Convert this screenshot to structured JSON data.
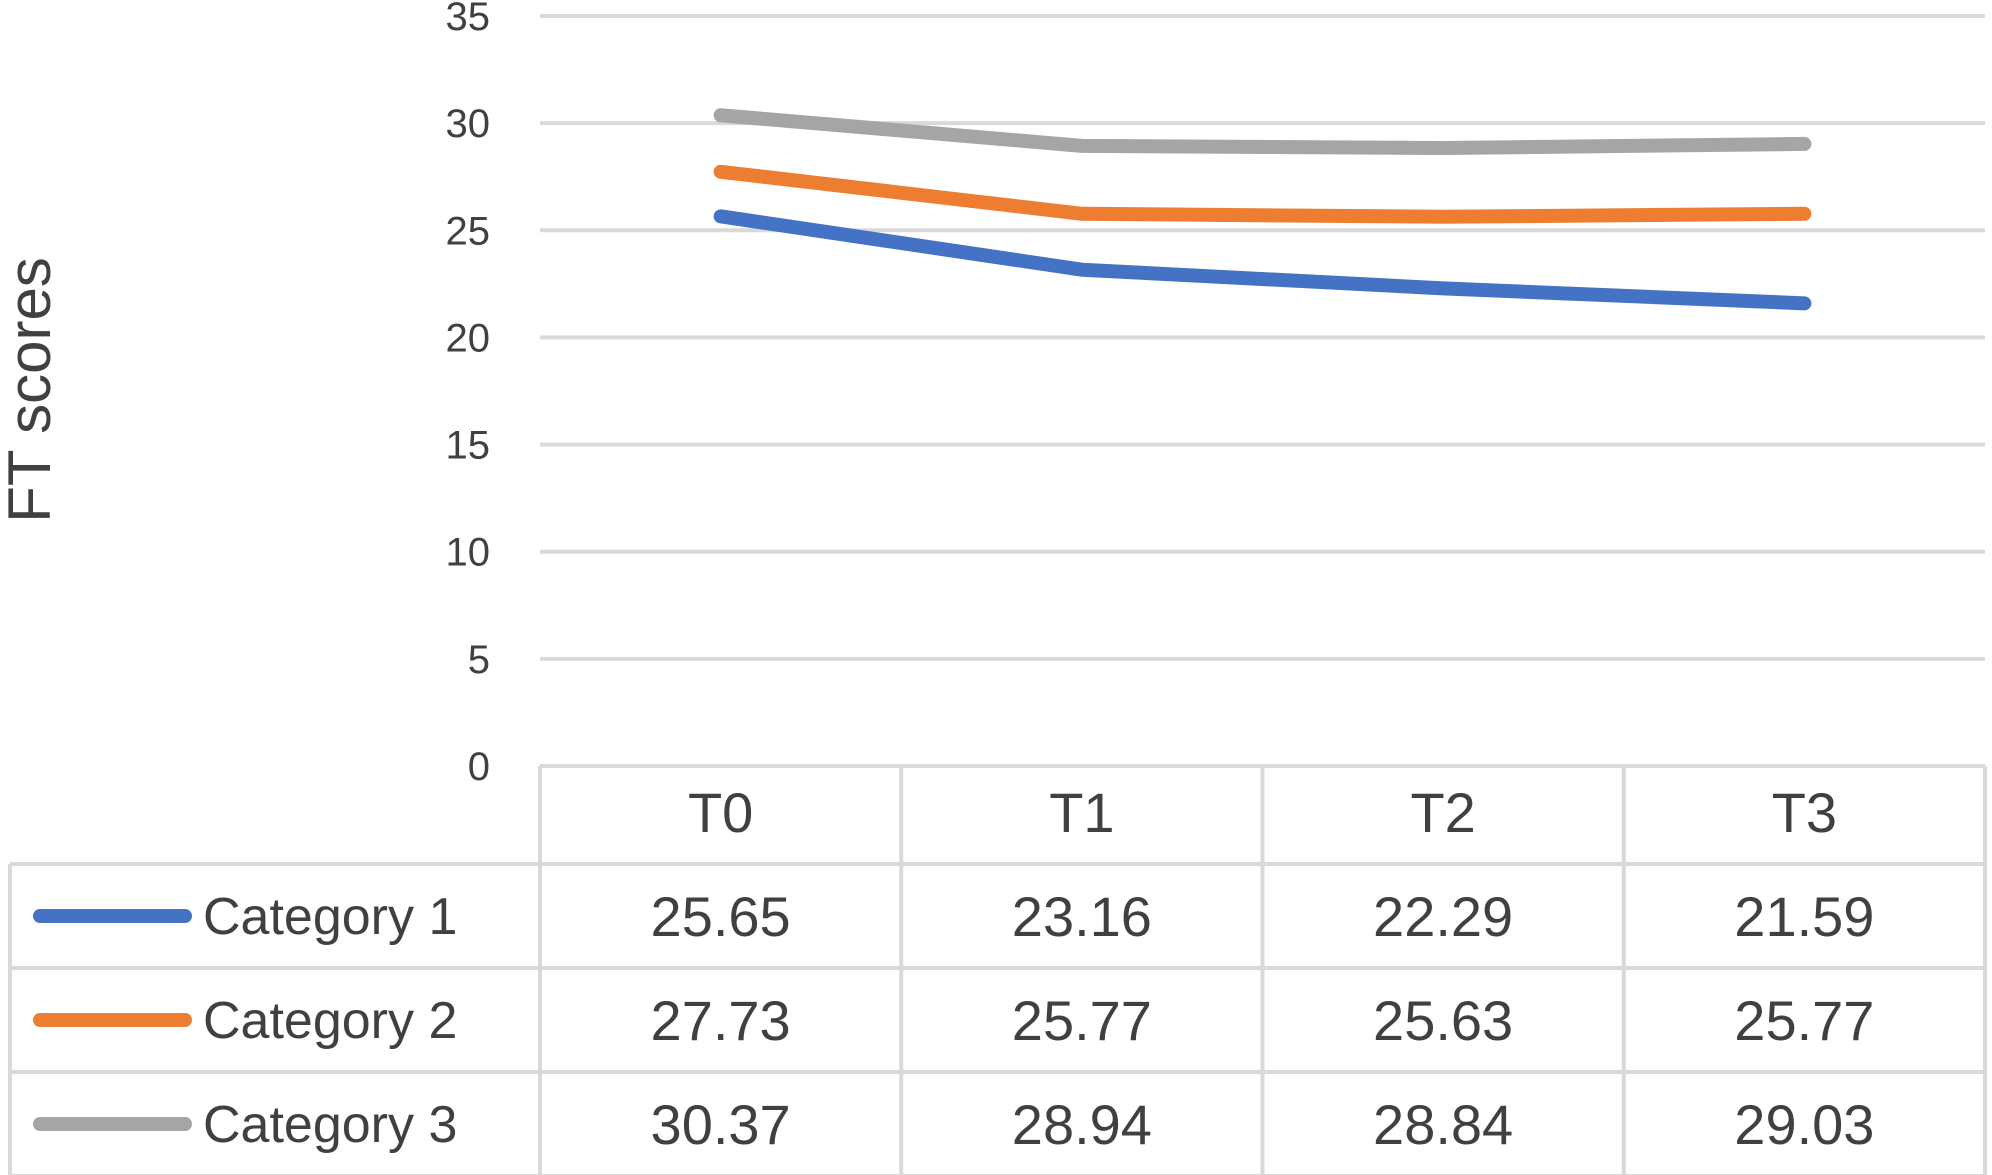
{
  "chart_data": {
    "type": "line",
    "ylabel": "FT scores",
    "xlabel": "",
    "ylim": [
      0,
      35
    ],
    "yticks": [
      0,
      5,
      10,
      15,
      20,
      25,
      30,
      35
    ],
    "grid": true,
    "legend": "data-table",
    "categories": [
      "T0",
      "T1",
      "T2",
      "T3"
    ],
    "series": [
      {
        "name": "Category 1",
        "color": "#4472c4",
        "values": [
          25.65,
          23.16,
          22.29,
          21.59
        ]
      },
      {
        "name": "Category 2",
        "color": "#ed7d31",
        "values": [
          27.73,
          25.77,
          25.63,
          25.77
        ]
      },
      {
        "name": "Category 3",
        "color": "#a5a5a5",
        "values": [
          30.37,
          28.94,
          28.84,
          29.03
        ]
      }
    ]
  }
}
